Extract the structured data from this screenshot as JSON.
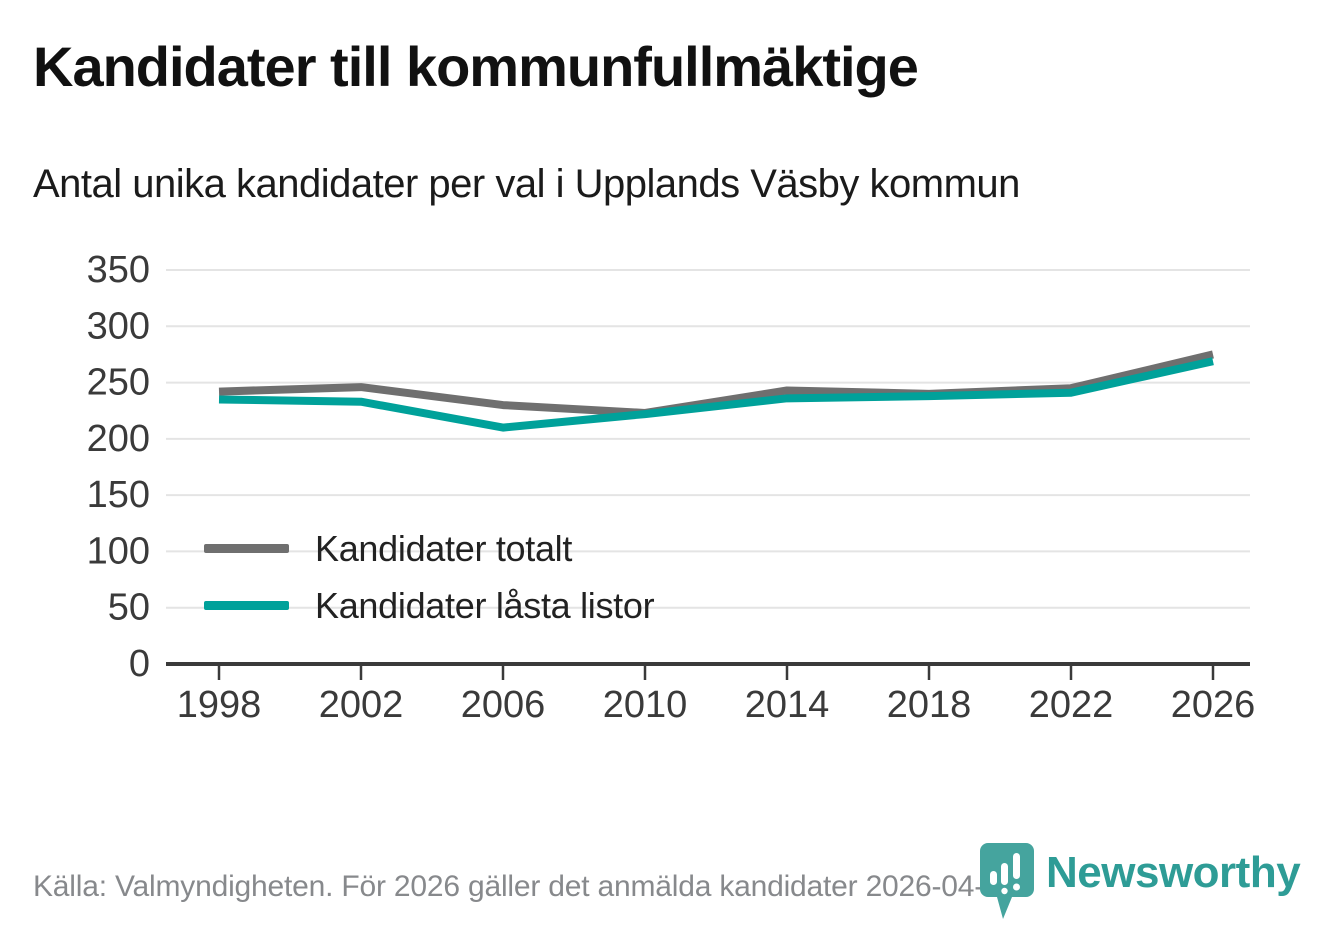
{
  "title": "Kandidater till kommunfullmäktige",
  "subtitle": "Antal unika kandidater per val i Upplands Väsby kommun",
  "footer": {
    "source": "Källa: Valmyndigheten. För 2026 gäller det anmälda kandidater 2026-04-10."
  },
  "logo": {
    "wordmark": "Newsworthy",
    "pin_color": "#45a49e",
    "pin_shade_color": "#3a948f",
    "wordmark_color": "#2e9c96",
    "icon": "bar-chart-exclamation-pin-icon"
  },
  "colors": {
    "background": "#ffffff",
    "grid": "#e4e4e4",
    "axis": "#3a3a3a",
    "tick_label": "#3a3a3a",
    "footer_text": "#87898c"
  },
  "chart_data": {
    "type": "line",
    "title": "Kandidater till kommunfullmäktige",
    "subtitle": "Antal unika kandidater per val i Upplands Väsby kommun",
    "x": [
      1998,
      2002,
      2006,
      2010,
      2014,
      2018,
      2022,
      2026
    ],
    "series": [
      {
        "name": "Kandidater totalt",
        "color": "#6f6f6f",
        "values": [
          242,
          246,
          230,
          223,
          243,
          240,
          245,
          275
        ]
      },
      {
        "name": "Kandidater låsta listor",
        "color": "#00a19a",
        "values": [
          235,
          233,
          210,
          222,
          236,
          238,
          241,
          269
        ]
      }
    ],
    "ylim": [
      0,
      350
    ],
    "yticks": [
      0,
      50,
      100,
      150,
      200,
      250,
      300,
      350
    ],
    "grid": "horizontal",
    "legend_position": "inside-bottom-left",
    "line_width": 8
  }
}
